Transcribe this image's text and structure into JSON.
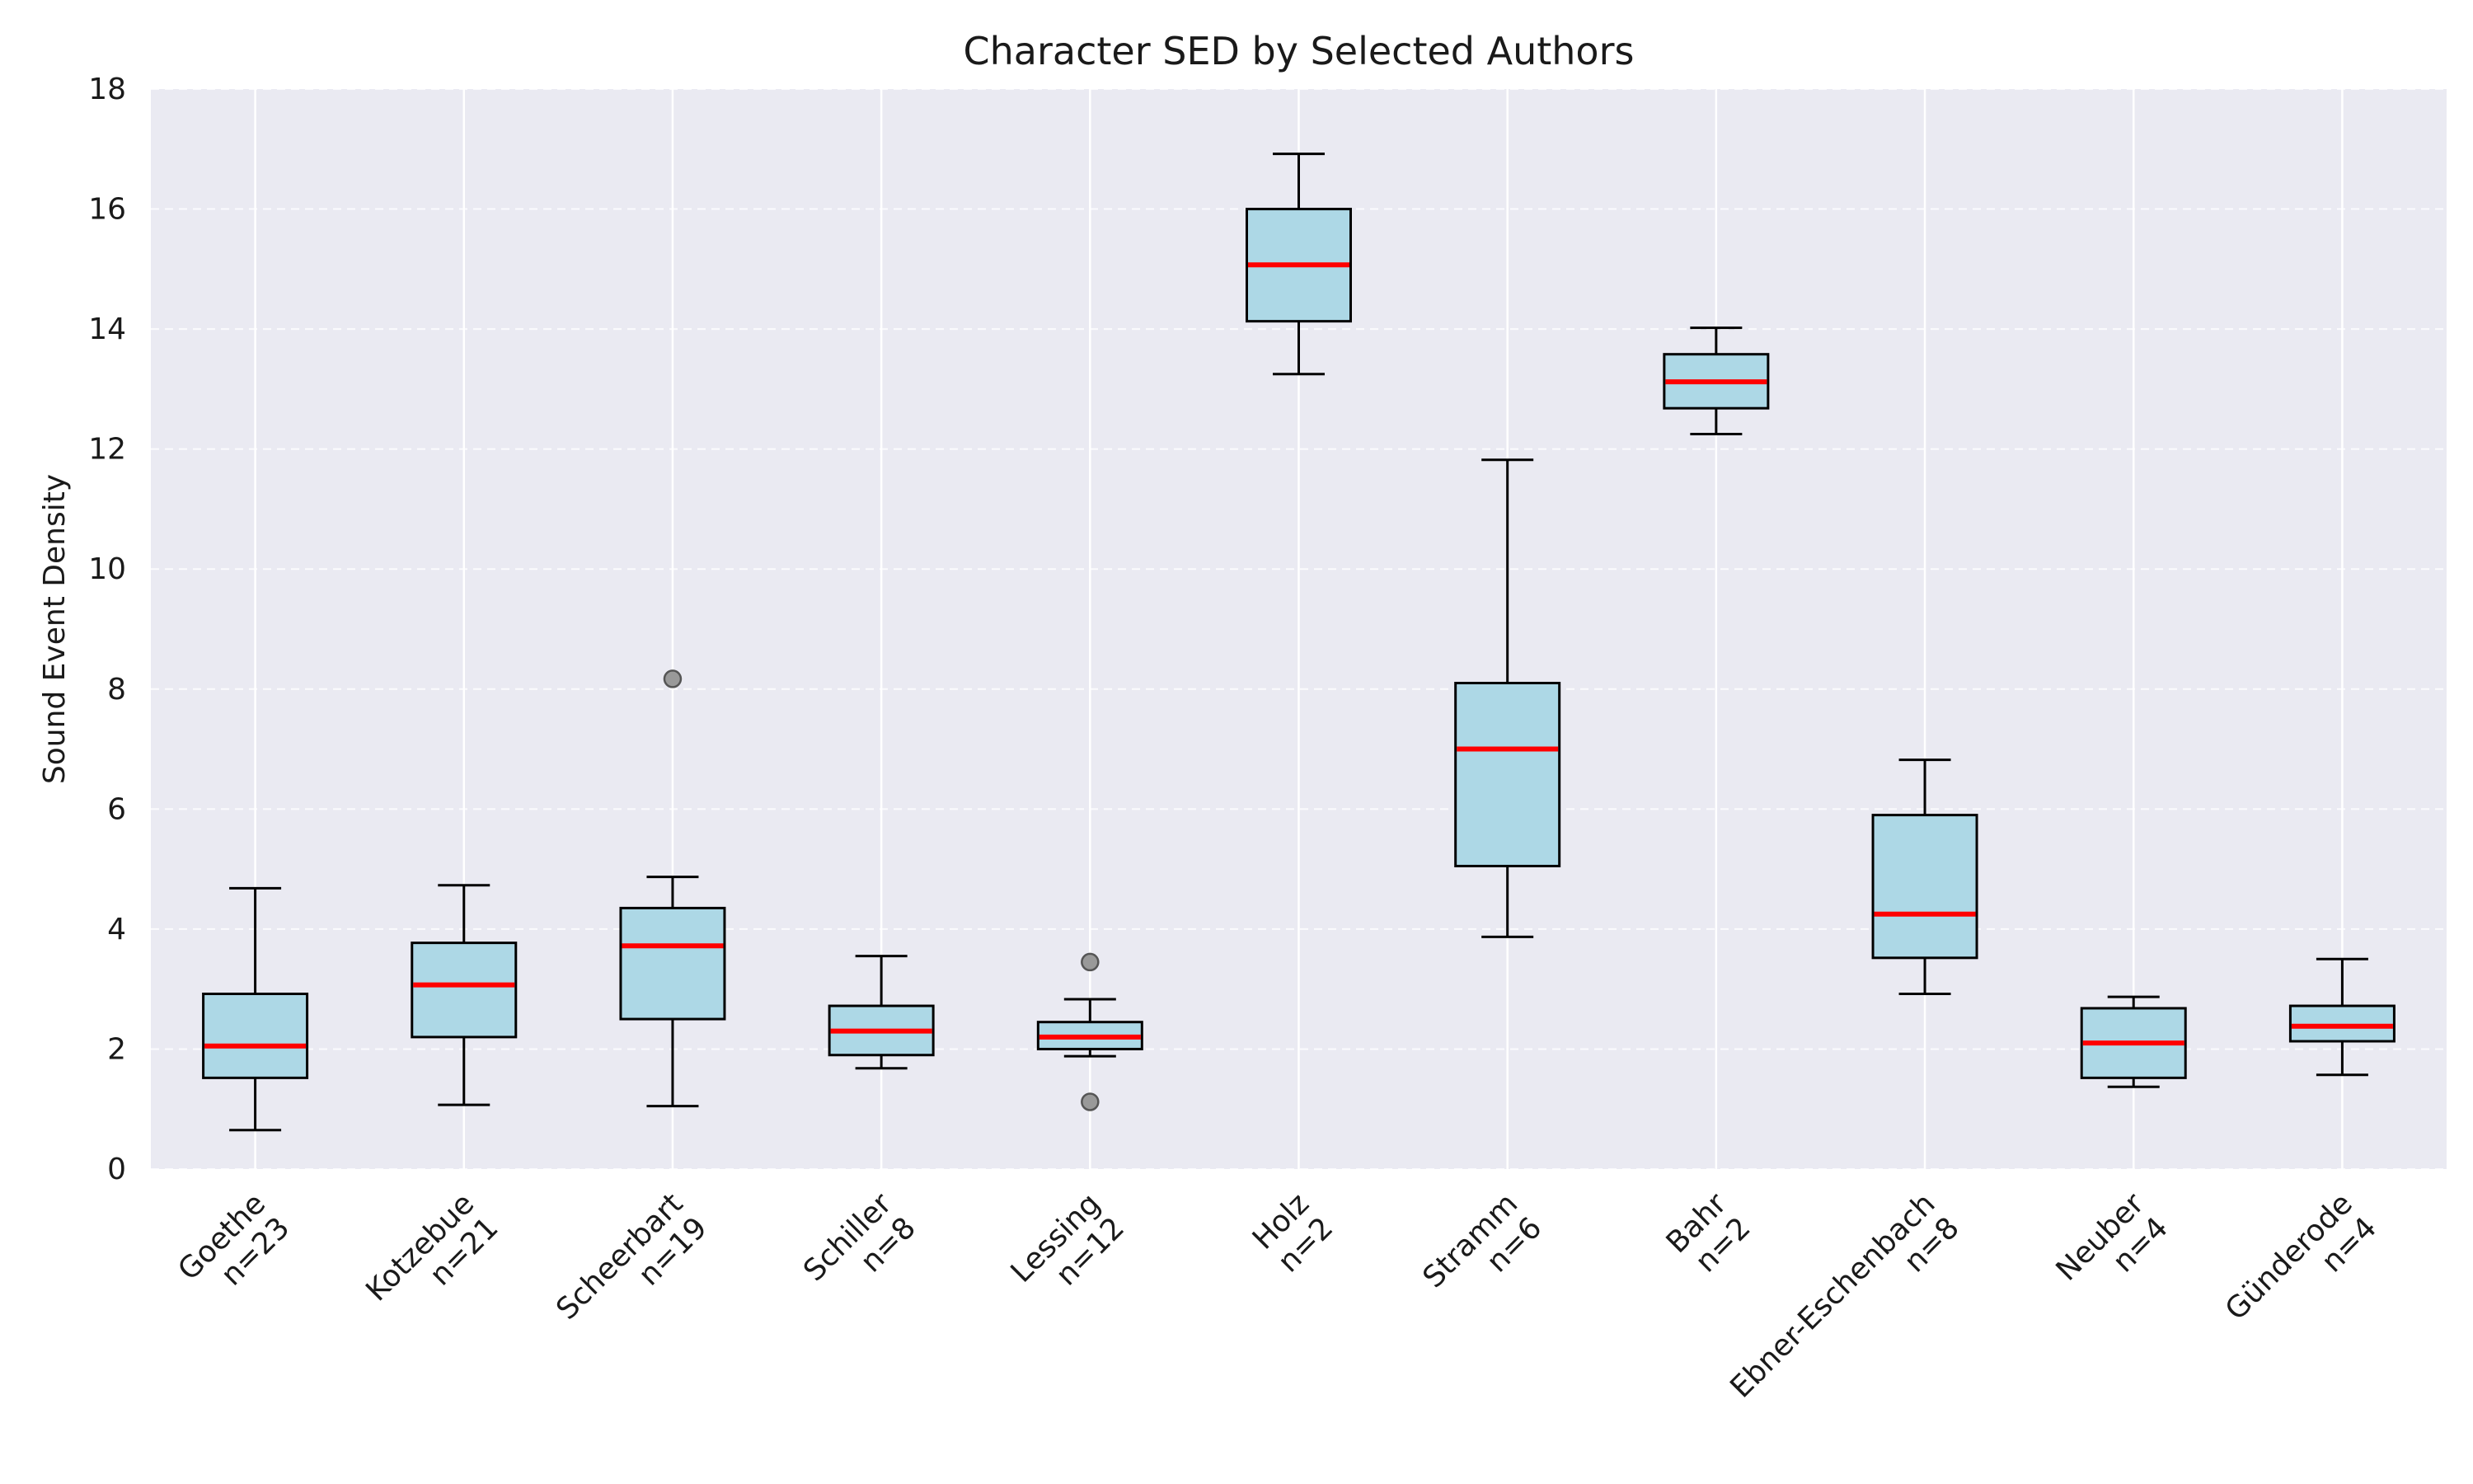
{
  "chart_data": {
    "type": "box",
    "title": "Character SED by Selected Authors",
    "xlabel": "",
    "ylabel": "Sound Event Density",
    "ylim": [
      0,
      18
    ],
    "yticks": [
      0,
      2,
      4,
      6,
      8,
      10,
      12,
      14,
      16,
      18
    ],
    "grid": true,
    "legend": "none",
    "colors": {
      "background": "#eaeaf2",
      "box_fill": "#add8e6",
      "box_edge": "#000000",
      "median": "#ff0000",
      "outlier": "#999999",
      "grid": "#ffffff"
    },
    "categories": [
      {
        "name": "Goethe",
        "count_label": "n=23",
        "whisker_low": 0.65,
        "q1": 1.52,
        "median": 2.05,
        "q3": 2.92,
        "whisker_high": 4.68,
        "outliers": []
      },
      {
        "name": "Kotzebue",
        "count_label": "n=21",
        "whisker_low": 1.07,
        "q1": 2.2,
        "median": 3.07,
        "q3": 3.77,
        "whisker_high": 4.73,
        "outliers": []
      },
      {
        "name": "Scheerbart",
        "count_label": "n=19",
        "whisker_low": 1.05,
        "q1": 2.5,
        "median": 3.72,
        "q3": 4.35,
        "whisker_high": 4.87,
        "outliers": [
          8.17
        ]
      },
      {
        "name": "Schiller",
        "count_label": "n=8",
        "whisker_low": 1.68,
        "q1": 1.9,
        "median": 2.3,
        "q3": 2.72,
        "whisker_high": 3.55,
        "outliers": []
      },
      {
        "name": "Lessing",
        "count_label": "n=12",
        "whisker_low": 1.88,
        "q1": 2.0,
        "median": 2.2,
        "q3": 2.45,
        "whisker_high": 2.83,
        "outliers": [
          3.45,
          1.12
        ]
      },
      {
        "name": "Holz",
        "count_label": "n=2",
        "whisker_low": 13.25,
        "q1": 14.13,
        "median": 15.07,
        "q3": 16.0,
        "whisker_high": 16.92,
        "outliers": []
      },
      {
        "name": "Stramm",
        "count_label": "n=6",
        "whisker_low": 3.87,
        "q1": 5.05,
        "median": 7.0,
        "q3": 8.1,
        "whisker_high": 11.82,
        "outliers": []
      },
      {
        "name": "Bahr",
        "count_label": "n=2",
        "whisker_low": 12.25,
        "q1": 12.68,
        "median": 13.12,
        "q3": 13.58,
        "whisker_high": 14.02,
        "outliers": []
      },
      {
        "name": "Ebner-Eschenbach",
        "count_label": "n=8",
        "whisker_low": 2.92,
        "q1": 3.52,
        "median": 4.25,
        "q3": 5.9,
        "whisker_high": 6.82,
        "outliers": []
      },
      {
        "name": "Neuber",
        "count_label": "n=4",
        "whisker_low": 1.37,
        "q1": 1.52,
        "median": 2.1,
        "q3": 2.68,
        "whisker_high": 2.87,
        "outliers": []
      },
      {
        "name": "Günderode",
        "count_label": "n=4",
        "whisker_low": 1.57,
        "q1": 2.13,
        "median": 2.38,
        "q3": 2.72,
        "whisker_high": 3.5,
        "outliers": []
      }
    ]
  }
}
